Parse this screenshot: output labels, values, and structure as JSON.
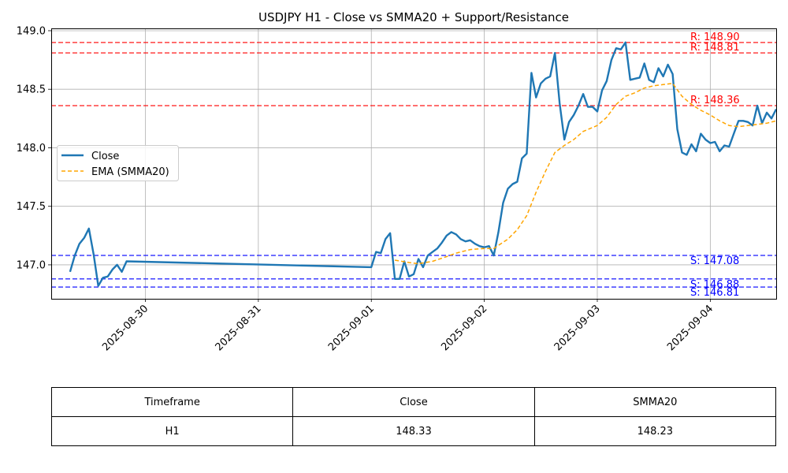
{
  "chart_data": {
    "type": "line",
    "title": "USDJPY H1 - Close vs SMMA20 + Support/Resistance",
    "xlabel": "",
    "ylabel": "",
    "x_range": [
      "2025-08-29T04:00",
      "2025-09-04T14:00"
    ],
    "ylim": [
      146.71,
      149.02
    ],
    "grid": true,
    "legend_position": "center-left",
    "x_ticks": [
      "2025-08-30",
      "2025-08-31",
      "2025-09-01",
      "2025-09-02",
      "2025-09-03",
      "2025-09-04"
    ],
    "y_ticks": [
      147.0,
      147.5,
      148.0,
      148.5,
      149.0
    ],
    "y_tick_labels": [
      "147.0",
      "147.5",
      "148.0",
      "148.5",
      "149.0"
    ],
    "series": [
      {
        "name": "Close",
        "style": "solid",
        "color": "#1f77b4",
        "points": [
          [
            "2025-08-29T08:00",
            146.94
          ],
          [
            "2025-08-29T09:00",
            147.08
          ],
          [
            "2025-08-29T10:00",
            147.18
          ],
          [
            "2025-08-29T11:00",
            147.23
          ],
          [
            "2025-08-29T12:00",
            147.31
          ],
          [
            "2025-08-29T13:00",
            147.09
          ],
          [
            "2025-08-29T14:00",
            146.82
          ],
          [
            "2025-08-29T15:00",
            146.89
          ],
          [
            "2025-08-29T16:00",
            146.9
          ],
          [
            "2025-08-29T17:00",
            146.96
          ],
          [
            "2025-08-29T18:00",
            147.0
          ],
          [
            "2025-08-29T19:00",
            146.94
          ],
          [
            "2025-08-29T20:00",
            147.03
          ],
          [
            "2025-09-01T00:00",
            146.98
          ],
          [
            "2025-09-01T01:00",
            147.11
          ],
          [
            "2025-09-01T02:00",
            147.1
          ],
          [
            "2025-09-01T03:00",
            147.22
          ],
          [
            "2025-09-01T04:00",
            147.27
          ],
          [
            "2025-09-01T05:00",
            146.88
          ],
          [
            "2025-09-01T06:00",
            146.88
          ],
          [
            "2025-09-01T07:00",
            147.03
          ],
          [
            "2025-09-01T08:00",
            146.9
          ],
          [
            "2025-09-01T09:00",
            146.92
          ],
          [
            "2025-09-01T10:00",
            147.05
          ],
          [
            "2025-09-01T11:00",
            146.98
          ],
          [
            "2025-09-01T12:00",
            147.08
          ],
          [
            "2025-09-01T13:00",
            147.11
          ],
          [
            "2025-09-01T14:00",
            147.14
          ],
          [
            "2025-09-01T15:00",
            147.19
          ],
          [
            "2025-09-01T16:00",
            147.25
          ],
          [
            "2025-09-01T17:00",
            147.28
          ],
          [
            "2025-09-01T18:00",
            147.26
          ],
          [
            "2025-09-01T19:00",
            147.22
          ],
          [
            "2025-09-01T20:00",
            147.2
          ],
          [
            "2025-09-01T21:00",
            147.21
          ],
          [
            "2025-09-01T22:00",
            147.18
          ],
          [
            "2025-09-01T23:00",
            147.16
          ],
          [
            "2025-09-02T00:00",
            147.15
          ],
          [
            "2025-09-02T01:00",
            147.16
          ],
          [
            "2025-09-02T02:00",
            147.08
          ],
          [
            "2025-09-02T03:00",
            147.28
          ],
          [
            "2025-09-02T04:00",
            147.53
          ],
          [
            "2025-09-02T05:00",
            147.65
          ],
          [
            "2025-09-02T06:00",
            147.69
          ],
          [
            "2025-09-02T07:00",
            147.71
          ],
          [
            "2025-09-02T08:00",
            147.91
          ],
          [
            "2025-09-02T09:00",
            147.95
          ],
          [
            "2025-09-02T10:00",
            148.64
          ],
          [
            "2025-09-02T11:00",
            148.43
          ],
          [
            "2025-09-02T12:00",
            148.55
          ],
          [
            "2025-09-02T13:00",
            148.59
          ],
          [
            "2025-09-02T14:00",
            148.61
          ],
          [
            "2025-09-02T15:00",
            148.81
          ],
          [
            "2025-09-02T16:00",
            148.38
          ],
          [
            "2025-09-02T17:00",
            148.07
          ],
          [
            "2025-09-02T18:00",
            148.22
          ],
          [
            "2025-09-02T19:00",
            148.28
          ],
          [
            "2025-09-02T20:00",
            148.36
          ],
          [
            "2025-09-02T21:00",
            148.46
          ],
          [
            "2025-09-02T22:00",
            148.35
          ],
          [
            "2025-09-02T23:00",
            148.35
          ],
          [
            "2025-09-03T00:00",
            148.31
          ],
          [
            "2025-09-03T01:00",
            148.49
          ],
          [
            "2025-09-03T02:00",
            148.57
          ],
          [
            "2025-09-03T03:00",
            148.75
          ],
          [
            "2025-09-03T04:00",
            148.85
          ],
          [
            "2025-09-03T05:00",
            148.84
          ],
          [
            "2025-09-03T06:00",
            148.9
          ],
          [
            "2025-09-03T07:00",
            148.58
          ],
          [
            "2025-09-03T08:00",
            148.59
          ],
          [
            "2025-09-03T09:00",
            148.6
          ],
          [
            "2025-09-03T10:00",
            148.72
          ],
          [
            "2025-09-03T11:00",
            148.58
          ],
          [
            "2025-09-03T12:00",
            148.56
          ],
          [
            "2025-09-03T13:00",
            148.68
          ],
          [
            "2025-09-03T14:00",
            148.61
          ],
          [
            "2025-09-03T15:00",
            148.71
          ],
          [
            "2025-09-03T16:00",
            148.63
          ],
          [
            "2025-09-03T17:00",
            148.16
          ],
          [
            "2025-09-03T18:00",
            147.96
          ],
          [
            "2025-09-03T19:00",
            147.94
          ],
          [
            "2025-09-03T20:00",
            148.03
          ],
          [
            "2025-09-03T21:00",
            147.97
          ],
          [
            "2025-09-03T22:00",
            148.12
          ],
          [
            "2025-09-03T23:00",
            148.07
          ],
          [
            "2025-09-04T00:00",
            148.04
          ],
          [
            "2025-09-04T01:00",
            148.05
          ],
          [
            "2025-09-04T02:00",
            147.97
          ],
          [
            "2025-09-04T03:00",
            148.02
          ],
          [
            "2025-09-04T04:00",
            148.01
          ],
          [
            "2025-09-04T05:00",
            148.12
          ],
          [
            "2025-09-04T06:00",
            148.23
          ],
          [
            "2025-09-04T07:00",
            148.23
          ],
          [
            "2025-09-04T08:00",
            148.22
          ],
          [
            "2025-09-04T09:00",
            148.19
          ],
          [
            "2025-09-04T10:00",
            148.36
          ],
          [
            "2025-09-04T11:00",
            148.21
          ],
          [
            "2025-09-04T12:00",
            148.3
          ],
          [
            "2025-09-04T13:00",
            148.25
          ],
          [
            "2025-09-04T14:00",
            148.33
          ]
        ]
      },
      {
        "name": "EMA (SMMA20)",
        "style": "dashed",
        "color": "#ffa500",
        "points": [
          [
            "2025-09-01T05:00",
            147.04
          ],
          [
            "2025-09-01T08:00",
            147.02
          ],
          [
            "2025-09-01T10:00",
            147.01
          ],
          [
            "2025-09-01T13:00",
            147.03
          ],
          [
            "2025-09-01T16:00",
            147.07
          ],
          [
            "2025-09-01T18:00",
            147.1
          ],
          [
            "2025-09-01T21:00",
            147.13
          ],
          [
            "2025-09-02T00:00",
            147.14
          ],
          [
            "2025-09-02T02:00",
            147.14
          ],
          [
            "2025-09-02T05:00",
            147.22
          ],
          [
            "2025-09-02T07:00",
            147.3
          ],
          [
            "2025-09-02T09:00",
            147.42
          ],
          [
            "2025-09-02T11:00",
            147.62
          ],
          [
            "2025-09-02T13:00",
            147.8
          ],
          [
            "2025-09-02T15:00",
            147.96
          ],
          [
            "2025-09-02T17:00",
            148.02
          ],
          [
            "2025-09-02T19:00",
            148.07
          ],
          [
            "2025-09-02T21:00",
            148.14
          ],
          [
            "2025-09-03T00:00",
            148.19
          ],
          [
            "2025-09-03T02:00",
            148.26
          ],
          [
            "2025-09-03T04:00",
            148.37
          ],
          [
            "2025-09-03T06:00",
            148.44
          ],
          [
            "2025-09-03T08:00",
            148.47
          ],
          [
            "2025-09-03T10:00",
            148.51
          ],
          [
            "2025-09-03T12:00",
            148.53
          ],
          [
            "2025-09-03T14:00",
            148.54
          ],
          [
            "2025-09-03T16:00",
            148.55
          ],
          [
            "2025-09-03T18:00",
            148.44
          ],
          [
            "2025-09-03T20:00",
            148.37
          ],
          [
            "2025-09-03T22:00",
            148.32
          ],
          [
            "2025-09-04T00:00",
            148.28
          ],
          [
            "2025-09-04T02:00",
            148.23
          ],
          [
            "2025-09-04T04:00",
            148.19
          ],
          [
            "2025-09-04T06:00",
            148.18
          ],
          [
            "2025-09-04T08:00",
            148.19
          ],
          [
            "2025-09-04T10:00",
            148.2
          ],
          [
            "2025-09-04T12:00",
            148.21
          ],
          [
            "2025-09-04T14:00",
            148.23
          ]
        ]
      }
    ],
    "levels": [
      {
        "kind": "resistance",
        "value": 148.9,
        "label": "R: 148.90",
        "color": "#ff0000"
      },
      {
        "kind": "resistance",
        "value": 148.81,
        "label": "R: 148.81",
        "color": "#ff0000"
      },
      {
        "kind": "resistance",
        "value": 148.36,
        "label": "R: 148.36",
        "color": "#ff0000"
      },
      {
        "kind": "support",
        "value": 147.08,
        "label": "S: 147.08",
        "color": "#0000ff"
      },
      {
        "kind": "support",
        "value": 146.88,
        "label": "S: 146.88",
        "color": "#0000ff"
      },
      {
        "kind": "support",
        "value": 146.81,
        "label": "S: 146.81",
        "color": "#0000ff"
      }
    ]
  },
  "table": {
    "headers": [
      "Timeframe",
      "Close",
      "SMMA20"
    ],
    "row": [
      "H1",
      "148.33",
      "148.23"
    ]
  }
}
